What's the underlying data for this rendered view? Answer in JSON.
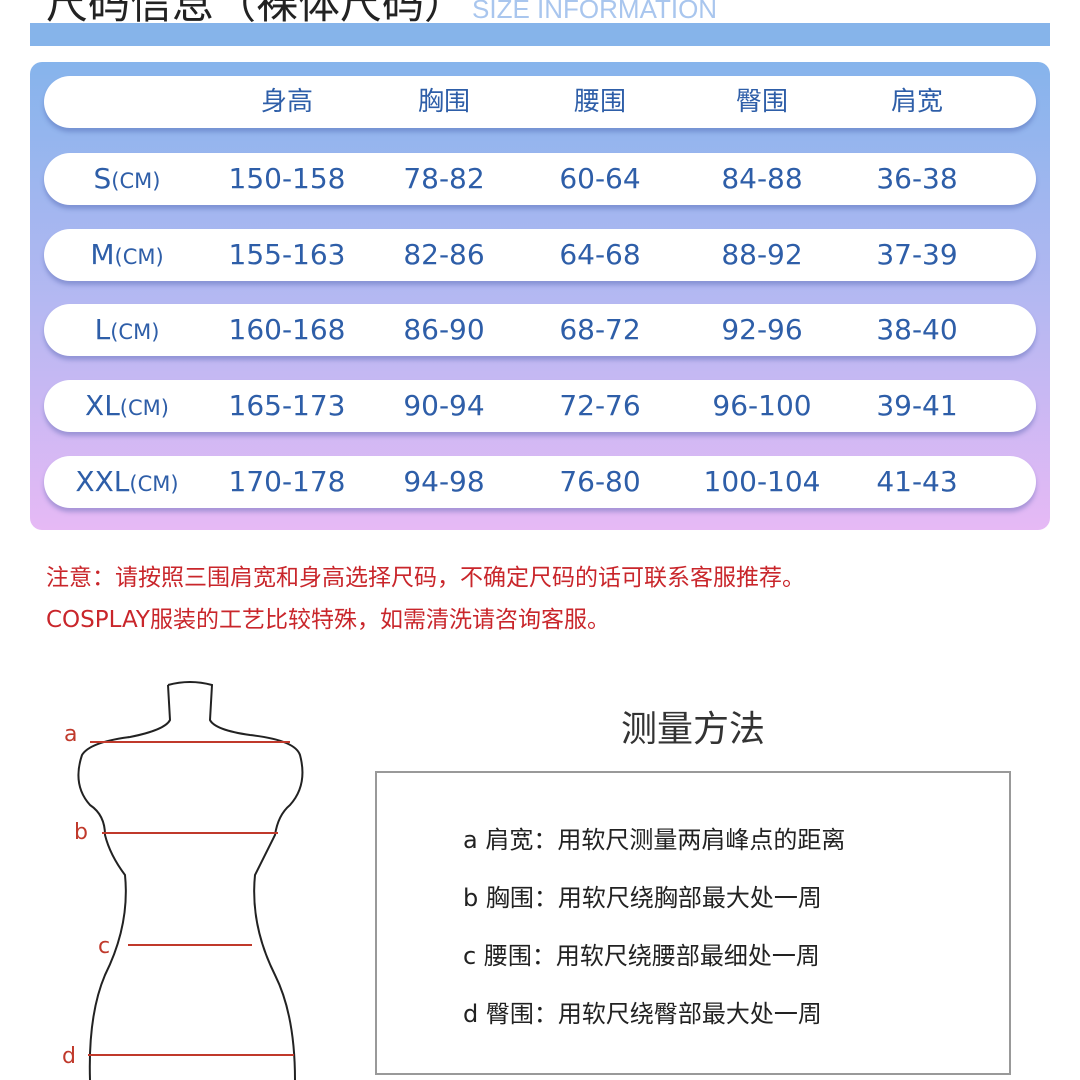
{
  "title": {
    "cn": "尺码信息（裸体尺码）",
    "en": "SIZE INFORMATION"
  },
  "table": {
    "headers": [
      "",
      "身高",
      "胸围",
      "腰围",
      "臀围",
      "肩宽"
    ],
    "rows": [
      {
        "size": "S",
        "unit": "(CM)",
        "values": [
          "150-158",
          "78-82",
          "60-64",
          "84-88",
          "36-38"
        ]
      },
      {
        "size": "M",
        "unit": "(CM)",
        "values": [
          "155-163",
          "82-86",
          "64-68",
          "88-92",
          "37-39"
        ]
      },
      {
        "size": "L",
        "unit": "(CM)",
        "values": [
          "160-168",
          "86-90",
          "68-72",
          "92-96",
          "38-40"
        ]
      },
      {
        "size": "XL",
        "unit": "(CM)",
        "values": [
          "165-173",
          "90-94",
          "72-76",
          "96-100",
          "39-41"
        ]
      },
      {
        "size": "XXL",
        "unit": "(CM)",
        "values": [
          "170-178",
          "94-98",
          "76-80",
          "100-104",
          "41-43"
        ]
      }
    ]
  },
  "notes": [
    "注意：请按照三围肩宽和身高选择尺码，不确定尺码的话可联系客服推荐。",
    "COSPLAY服装的工艺比较特殊，如需清洗请咨询客服。"
  ],
  "measure": {
    "title": "测量方法",
    "labels": [
      "a",
      "b",
      "c",
      "d"
    ],
    "items": [
      "a  肩宽：用软尺测量两肩峰点的距离",
      "b  胸围：用软尺绕胸部最大处一周",
      "c  腰围：用软尺绕腰部最细处一周",
      "d  臀围：用软尺绕臀部最大处一周"
    ]
  },
  "colors": {
    "table_text": "#2e5ea8",
    "note_red": "#c9262b",
    "guide_red": "#c0392b"
  }
}
